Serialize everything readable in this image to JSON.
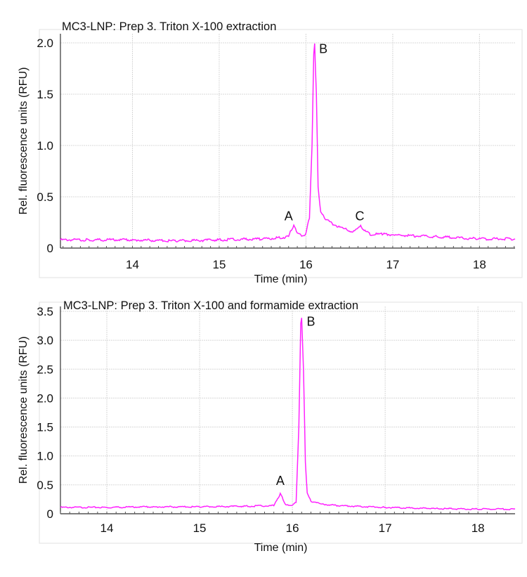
{
  "chart_data": [
    {
      "type": "line",
      "title": "MC3-LNP: Prep 3. Triton X-100 extraction",
      "xlabel": "Time (min)",
      "ylabel": "Rel. fluorescence units (RFU)",
      "xlim": [
        13.17,
        18.41
      ],
      "ylim": [
        0,
        2.0
      ],
      "xticks": [
        "14",
        "15",
        "16",
        "17",
        "18"
      ],
      "xtick_values": [
        14,
        15,
        16,
        17,
        18
      ],
      "yticks": [
        "0",
        "0.5",
        "1.0",
        "1.5",
        "2.0"
      ],
      "ytick_values": [
        0,
        0.5,
        1.0,
        1.5,
        2.0
      ],
      "grid": true,
      "color": "#ff22ff",
      "series": [
        {
          "name": "trace",
          "x": [
            13.17,
            13.5,
            14,
            14.5,
            15,
            15.5,
            15.7,
            15.8,
            15.83,
            15.86,
            15.9,
            15.95,
            16.0,
            16.04,
            16.07,
            16.09,
            16.1,
            16.12,
            16.14,
            16.17,
            16.22,
            16.3,
            16.4,
            16.5,
            16.55,
            16.6,
            16.63,
            16.67,
            16.75,
            16.9,
            17,
            17.5,
            18,
            18.41
          ],
          "y": [
            0.08,
            0.08,
            0.08,
            0.07,
            0.08,
            0.09,
            0.1,
            0.11,
            0.18,
            0.22,
            0.15,
            0.12,
            0.14,
            0.3,
            1.0,
            1.9,
            2.0,
            1.5,
            0.6,
            0.35,
            0.29,
            0.24,
            0.2,
            0.17,
            0.16,
            0.2,
            0.22,
            0.17,
            0.13,
            0.14,
            0.13,
            0.11,
            0.09,
            0.09
          ]
        }
      ],
      "annotations": [
        {
          "text": "A",
          "x": 15.8,
          "y": 0.27
        },
        {
          "text": "B",
          "x": 16.2,
          "y": 1.9
        },
        {
          "text": "C",
          "x": 16.62,
          "y": 0.27
        }
      ]
    },
    {
      "type": "line",
      "title": "MC3-LNP: Prep 3. Triton X-100 and formamide extraction",
      "xlabel": "Time (min)",
      "ylabel": "Rel. fluorescence units (RFU)",
      "xlim": [
        13.5,
        18.4
      ],
      "ylim": [
        0,
        3.5
      ],
      "xticks": [
        "14",
        "15",
        "16",
        "17",
        "18"
      ],
      "xtick_values": [
        14,
        15,
        16,
        17,
        18
      ],
      "yticks": [
        "0",
        "0.5",
        "1.0",
        "1.5",
        "2.0",
        "2.5",
        "3.0",
        "3.5"
      ],
      "ytick_values": [
        0,
        0.5,
        1.0,
        1.5,
        2.0,
        2.5,
        3.0,
        3.5
      ],
      "grid": true,
      "color": "#ff22ff",
      "series": [
        {
          "name": "trace",
          "x": [
            13.5,
            14,
            14.5,
            15,
            15.5,
            15.8,
            15.85,
            15.87,
            15.9,
            15.93,
            16.0,
            16.04,
            16.07,
            16.09,
            16.1,
            16.12,
            16.14,
            16.16,
            16.2,
            16.3,
            16.5,
            17,
            17.5,
            18,
            18.4
          ],
          "y": [
            0.11,
            0.11,
            0.12,
            0.12,
            0.13,
            0.14,
            0.28,
            0.35,
            0.25,
            0.15,
            0.15,
            0.2,
            1.5,
            3.3,
            3.38,
            2.5,
            0.9,
            0.35,
            0.22,
            0.17,
            0.14,
            0.11,
            0.09,
            0.08,
            0.08
          ]
        }
      ],
      "annotations": [
        {
          "text": "A",
          "x": 15.87,
          "y": 0.5
        },
        {
          "text": "B",
          "x": 16.2,
          "y": 3.25
        }
      ]
    }
  ]
}
